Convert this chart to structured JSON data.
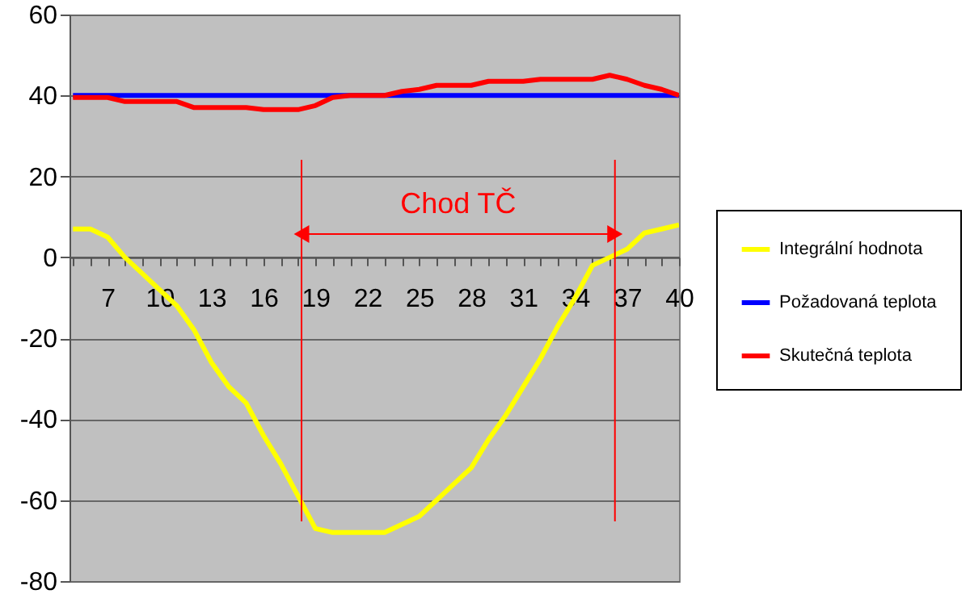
{
  "chart_data": {
    "type": "line",
    "x": [
      5,
      6,
      7,
      8,
      9,
      10,
      11,
      12,
      13,
      14,
      15,
      16,
      17,
      18,
      19,
      20,
      21,
      22,
      23,
      24,
      25,
      26,
      27,
      28,
      29,
      30,
      31,
      32,
      33,
      34,
      35,
      36,
      37,
      38,
      39,
      40
    ],
    "xlim": [
      4.8,
      40
    ],
    "xticks": [
      {
        "value": 5,
        "label": null
      },
      {
        "value": 6,
        "label": null
      },
      7,
      {
        "value": 8,
        "label": null
      },
      {
        "value": 9,
        "label": null
      },
      10,
      {
        "value": 11,
        "label": null
      },
      {
        "value": 12,
        "label": null
      },
      13,
      {
        "value": 14,
        "label": null
      },
      {
        "value": 15,
        "label": null
      },
      16,
      {
        "value": 17,
        "label": null
      },
      {
        "value": 18,
        "label": null
      },
      19,
      {
        "value": 20,
        "label": null
      },
      {
        "value": 21,
        "label": null
      },
      22,
      {
        "value": 23,
        "label": null
      },
      {
        "value": 24,
        "label": null
      },
      25,
      {
        "value": 26,
        "label": null
      },
      {
        "value": 27,
        "label": null
      },
      28,
      {
        "value": 29,
        "label": null
      },
      {
        "value": 30,
        "label": null
      },
      31,
      {
        "value": 32,
        "label": null
      },
      {
        "value": 33,
        "label": null
      },
      34,
      {
        "value": 35,
        "label": null
      },
      {
        "value": 36,
        "label": null
      },
      37,
      {
        "value": 38,
        "label": null
      },
      {
        "value": 39,
        "label": null
      },
      40
    ],
    "ylim": [
      -80,
      60
    ],
    "yticks": [
      -80,
      -60,
      -40,
      -20,
      0,
      20,
      40,
      60
    ],
    "grid": "y",
    "legend": "right",
    "series": [
      {
        "name": "Integrální hodnota",
        "color": "#ffff00",
        "values": [
          7,
          7,
          5,
          0,
          -4,
          -8,
          -12,
          -18,
          -26,
          -32,
          -36,
          -44,
          -51,
          -59,
          -67,
          -68,
          -68,
          -68,
          -68,
          -66,
          -64,
          -60,
          -56,
          -52,
          -45,
          -39,
          -32,
          -25,
          -17,
          -10,
          -2,
          0,
          2,
          6,
          7,
          8
        ]
      },
      {
        "name": "Požadovaná teplota",
        "color": "#0000ff",
        "values": [
          40,
          40,
          40,
          40,
          40,
          40,
          40,
          40,
          40,
          40,
          40,
          40,
          40,
          40,
          40,
          40,
          40,
          40,
          40,
          40,
          40,
          40,
          40,
          40,
          40,
          40,
          40,
          40,
          40,
          40,
          40,
          40,
          40,
          40,
          40,
          40
        ]
      },
      {
        "name": "Skutečná teplota",
        "color": "#ff0000",
        "values": [
          39.5,
          39.5,
          39.5,
          38.5,
          38.5,
          38.5,
          38.5,
          37,
          37,
          37,
          37,
          36.5,
          36.5,
          36.5,
          37.5,
          39.5,
          40,
          40,
          40,
          41,
          41.5,
          42.5,
          42.5,
          42.5,
          43.5,
          43.5,
          43.5,
          44,
          44,
          44,
          44,
          45,
          44,
          42.5,
          41.5,
          40
        ]
      }
    ],
    "ref_lines": [
      {
        "axis": "x",
        "value": 18.2,
        "color": "#ff0000"
      },
      {
        "axis": "x",
        "value": 36.3,
        "color": "#ff0000"
      }
    ],
    "annotations": [
      "Chod TČ"
    ]
  }
}
